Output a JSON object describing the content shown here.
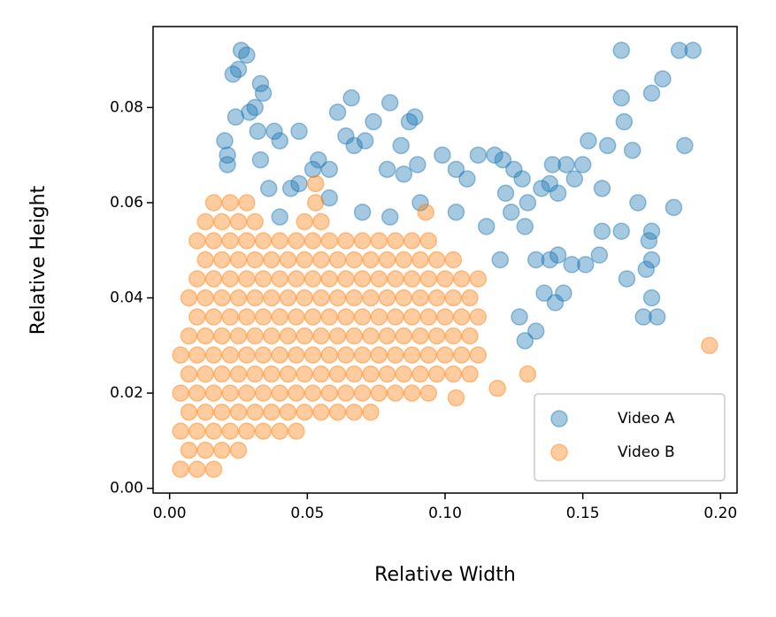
{
  "chart_data": {
    "type": "scatter",
    "xlabel": "Relative Width",
    "ylabel": "Relative Height",
    "xlim": [
      -0.006,
      0.206
    ],
    "ylim": [
      -0.001,
      0.097
    ],
    "xticks": [
      {
        "value": 0,
        "label": "0.00"
      },
      {
        "value": 0.05,
        "label": "0.05"
      },
      {
        "value": 0.1,
        "label": "0.10"
      },
      {
        "value": 0.15,
        "label": "0.15"
      },
      {
        "value": 0.2,
        "label": "0.20"
      }
    ],
    "yticks": [
      {
        "value": 0,
        "label": "0.00"
      },
      {
        "value": 0.02,
        "label": "0.02"
      },
      {
        "value": 0.04,
        "label": "0.04"
      },
      {
        "value": 0.06,
        "label": "0.06"
      },
      {
        "value": 0.08,
        "label": "0.08"
      }
    ],
    "legend": "lower right",
    "grid": false,
    "series": [
      {
        "name": "Video A",
        "color": "#1f77b4",
        "x": [
          0.026,
          0.028,
          0.023,
          0.025,
          0.033,
          0.034,
          0.029,
          0.031,
          0.024,
          0.02,
          0.021,
          0.021,
          0.032,
          0.038,
          0.04,
          0.047,
          0.033,
          0.044,
          0.047,
          0.052,
          0.054,
          0.058,
          0.061,
          0.066,
          0.064,
          0.067,
          0.071,
          0.074,
          0.08,
          0.087,
          0.089,
          0.084,
          0.079,
          0.085,
          0.09,
          0.099,
          0.104,
          0.108,
          0.112,
          0.118,
          0.121,
          0.125,
          0.128,
          0.122,
          0.13,
          0.135,
          0.138,
          0.141,
          0.139,
          0.144,
          0.147,
          0.15,
          0.152,
          0.159,
          0.164,
          0.164,
          0.165,
          0.168,
          0.175,
          0.179,
          0.185,
          0.19,
          0.187,
          0.183,
          0.157,
          0.17,
          0.175,
          0.164,
          0.157,
          0.156,
          0.151,
          0.146,
          0.141,
          0.138,
          0.133,
          0.129,
          0.124,
          0.127,
          0.133,
          0.14,
          0.143,
          0.136,
          0.166,
          0.173,
          0.175,
          0.174,
          0.172,
          0.175,
          0.177,
          0.129,
          0.12,
          0.115,
          0.104,
          0.091,
          0.08,
          0.07,
          0.058,
          0.04,
          0.036
        ],
        "values": [
          0.092,
          0.091,
          0.087,
          0.088,
          0.085,
          0.083,
          0.079,
          0.08,
          0.078,
          0.073,
          0.07,
          0.068,
          0.075,
          0.075,
          0.073,
          0.075,
          0.069,
          0.063,
          0.064,
          0.067,
          0.069,
          0.067,
          0.079,
          0.082,
          0.074,
          0.072,
          0.073,
          0.077,
          0.081,
          0.077,
          0.078,
          0.072,
          0.067,
          0.066,
          0.068,
          0.07,
          0.067,
          0.065,
          0.07,
          0.07,
          0.069,
          0.067,
          0.065,
          0.062,
          0.06,
          0.063,
          0.064,
          0.062,
          0.068,
          0.068,
          0.065,
          0.068,
          0.073,
          0.072,
          0.092,
          0.082,
          0.077,
          0.071,
          0.083,
          0.086,
          0.092,
          0.092,
          0.072,
          0.059,
          0.063,
          0.06,
          0.054,
          0.054,
          0.054,
          0.049,
          0.047,
          0.047,
          0.049,
          0.048,
          0.048,
          0.055,
          0.058,
          0.036,
          0.033,
          0.039,
          0.041,
          0.041,
          0.044,
          0.046,
          0.048,
          0.052,
          0.036,
          0.04,
          0.036,
          0.031,
          0.048,
          0.055,
          0.058,
          0.06,
          0.057,
          0.058,
          0.061,
          0.057,
          0.063
        ]
      },
      {
        "name": "Video B",
        "color": "#ff7f0e",
        "x": [
          0.004,
          0.01,
          0.016,
          0.007,
          0.013,
          0.019,
          0.025,
          0.004,
          0.01,
          0.016,
          0.022,
          0.028,
          0.034,
          0.04,
          0.046,
          0.007,
          0.013,
          0.019,
          0.025,
          0.031,
          0.037,
          0.043,
          0.049,
          0.055,
          0.061,
          0.067,
          0.073,
          0.004,
          0.01,
          0.016,
          0.022,
          0.028,
          0.034,
          0.04,
          0.046,
          0.052,
          0.058,
          0.064,
          0.07,
          0.076,
          0.082,
          0.088,
          0.094,
          0.007,
          0.013,
          0.019,
          0.025,
          0.031,
          0.037,
          0.043,
          0.049,
          0.055,
          0.061,
          0.067,
          0.073,
          0.079,
          0.085,
          0.091,
          0.097,
          0.103,
          0.109,
          0.004,
          0.01,
          0.016,
          0.022,
          0.028,
          0.034,
          0.04,
          0.046,
          0.052,
          0.058,
          0.064,
          0.07,
          0.076,
          0.082,
          0.088,
          0.094,
          0.1,
          0.106,
          0.112,
          0.007,
          0.013,
          0.019,
          0.025,
          0.031,
          0.037,
          0.043,
          0.049,
          0.055,
          0.061,
          0.067,
          0.073,
          0.079,
          0.085,
          0.091,
          0.097,
          0.103,
          0.109,
          0.01,
          0.016,
          0.022,
          0.028,
          0.034,
          0.04,
          0.046,
          0.052,
          0.058,
          0.064,
          0.07,
          0.076,
          0.082,
          0.088,
          0.094,
          0.1,
          0.106,
          0.112,
          0.007,
          0.013,
          0.019,
          0.025,
          0.031,
          0.037,
          0.043,
          0.049,
          0.055,
          0.061,
          0.067,
          0.073,
          0.079,
          0.085,
          0.091,
          0.097,
          0.103,
          0.109,
          0.01,
          0.016,
          0.022,
          0.028,
          0.034,
          0.04,
          0.046,
          0.052,
          0.058,
          0.064,
          0.07,
          0.076,
          0.082,
          0.088,
          0.094,
          0.1,
          0.106,
          0.112,
          0.013,
          0.019,
          0.025,
          0.031,
          0.037,
          0.043,
          0.049,
          0.055,
          0.061,
          0.067,
          0.073,
          0.079,
          0.085,
          0.091,
          0.097,
          0.103,
          0.01,
          0.016,
          0.022,
          0.028,
          0.034,
          0.04,
          0.046,
          0.052,
          0.058,
          0.064,
          0.07,
          0.076,
          0.082,
          0.088,
          0.094,
          0.013,
          0.019,
          0.025,
          0.031,
          0.049,
          0.055,
          0.016,
          0.022,
          0.028,
          0.053,
          0.053,
          0.196,
          0.13,
          0.119,
          0.104,
          0.093
        ],
        "values": [
          0.004,
          0.004,
          0.004,
          0.008,
          0.008,
          0.008,
          0.008,
          0.012,
          0.012,
          0.012,
          0.012,
          0.012,
          0.012,
          0.012,
          0.012,
          0.016,
          0.016,
          0.016,
          0.016,
          0.016,
          0.016,
          0.016,
          0.016,
          0.016,
          0.016,
          0.016,
          0.016,
          0.02,
          0.02,
          0.02,
          0.02,
          0.02,
          0.02,
          0.02,
          0.02,
          0.02,
          0.02,
          0.02,
          0.02,
          0.02,
          0.02,
          0.02,
          0.02,
          0.024,
          0.024,
          0.024,
          0.024,
          0.024,
          0.024,
          0.024,
          0.024,
          0.024,
          0.024,
          0.024,
          0.024,
          0.024,
          0.024,
          0.024,
          0.024,
          0.024,
          0.024,
          0.028,
          0.028,
          0.028,
          0.028,
          0.028,
          0.028,
          0.028,
          0.028,
          0.028,
          0.028,
          0.028,
          0.028,
          0.028,
          0.028,
          0.028,
          0.028,
          0.028,
          0.028,
          0.028,
          0.032,
          0.032,
          0.032,
          0.032,
          0.032,
          0.032,
          0.032,
          0.032,
          0.032,
          0.032,
          0.032,
          0.032,
          0.032,
          0.032,
          0.032,
          0.032,
          0.032,
          0.032,
          0.036,
          0.036,
          0.036,
          0.036,
          0.036,
          0.036,
          0.036,
          0.036,
          0.036,
          0.036,
          0.036,
          0.036,
          0.036,
          0.036,
          0.036,
          0.036,
          0.036,
          0.036,
          0.04,
          0.04,
          0.04,
          0.04,
          0.04,
          0.04,
          0.04,
          0.04,
          0.04,
          0.04,
          0.04,
          0.04,
          0.04,
          0.04,
          0.04,
          0.04,
          0.04,
          0.04,
          0.044,
          0.044,
          0.044,
          0.044,
          0.044,
          0.044,
          0.044,
          0.044,
          0.044,
          0.044,
          0.044,
          0.044,
          0.044,
          0.044,
          0.044,
          0.044,
          0.044,
          0.044,
          0.048,
          0.048,
          0.048,
          0.048,
          0.048,
          0.048,
          0.048,
          0.048,
          0.048,
          0.048,
          0.048,
          0.048,
          0.048,
          0.048,
          0.048,
          0.048,
          0.052,
          0.052,
          0.052,
          0.052,
          0.052,
          0.052,
          0.052,
          0.052,
          0.052,
          0.052,
          0.052,
          0.052,
          0.052,
          0.052,
          0.052,
          0.056,
          0.056,
          0.056,
          0.056,
          0.056,
          0.056,
          0.06,
          0.06,
          0.06,
          0.06,
          0.064,
          0.03,
          0.024,
          0.021,
          0.019,
          0.058
        ]
      }
    ]
  }
}
